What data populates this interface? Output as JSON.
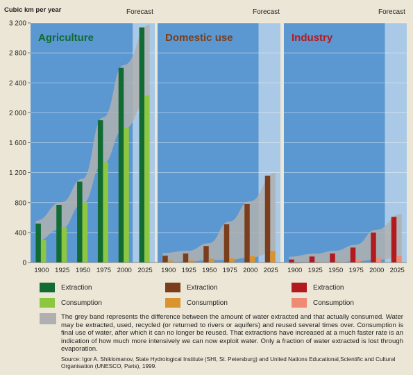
{
  "y_axis_title": "Cubic km per year",
  "forecast_label": "Forecast",
  "legend": {
    "extraction": "Extraction",
    "consumption": "Consumption"
  },
  "note": "The grey band represents the difference between the amount of water extracted and that actually consumed. Water may be extracted, used, recycled (or returned to rivers or aquifers) and reused several times over. Consumption is final use of water, after which it can no longer be reused. That extractions have increased at a much faster rate is an indication of how much more intensively we can now exploit water. Only a fraction of water extracted is lost through evaporation.",
  "source": "Source: Igor A. Shiklomanov, State Hydrological Institute (SHI, St. Petersburg) and United Nations Educational,Scientific and Cultural Organisation (UNESCO, Paris), 1999.",
  "colors": {
    "agriculture_extraction": "#136b34",
    "agriculture_consumption": "#8dc63f",
    "domestic_extraction": "#7a3e1c",
    "domestic_consumption": "#d9942f",
    "industry_extraction": "#b31a1f",
    "industry_consumption": "#f08a74",
    "panel_bg": "#5b98d1",
    "forecast_bg": "#a9c9e6",
    "band": "#b0b0b0"
  },
  "chart_data": [
    {
      "type": "bar",
      "title": "Agriculture",
      "title_color": "#0f6a2e",
      "categories": [
        "1900",
        "1925",
        "1950",
        "1975",
        "2000",
        "2025"
      ],
      "series": [
        {
          "name": "Extraction",
          "values": [
            520,
            770,
            1080,
            1900,
            2600,
            3140
          ]
        },
        {
          "name": "Consumption",
          "values": [
            300,
            470,
            800,
            1340,
            1800,
            2230
          ]
        }
      ],
      "ylim": [
        0,
        3200
      ],
      "yticks": [
        "0",
        "400",
        "800",
        "1 200",
        "1 600",
        "2 000",
        "2 400",
        "2 800",
        "3 200"
      ],
      "ylabel": "Cubic km per year"
    },
    {
      "type": "bar",
      "title": "Domestic use",
      "title_color": "#7a3e1c",
      "categories": [
        "1900",
        "1925",
        "1950",
        "1975",
        "2000",
        "2025"
      ],
      "series": [
        {
          "name": "Extraction",
          "values": [
            90,
            120,
            220,
            510,
            780,
            1160
          ]
        },
        {
          "name": "Consumption",
          "values": [
            25,
            30,
            50,
            55,
            85,
            155
          ]
        }
      ],
      "ylim": [
        0,
        3200
      ]
    },
    {
      "type": "bar",
      "title": "Industry",
      "title_color": "#b31a1f",
      "categories": [
        "1900",
        "1925",
        "1950",
        "1975",
        "2000",
        "2025"
      ],
      "series": [
        {
          "name": "Extraction",
          "values": [
            40,
            80,
            120,
            200,
            400,
            610
          ]
        },
        {
          "name": "Consumption",
          "values": [
            5,
            12,
            20,
            35,
            55,
            85
          ]
        }
      ],
      "ylim": [
        0,
        3200
      ]
    }
  ]
}
